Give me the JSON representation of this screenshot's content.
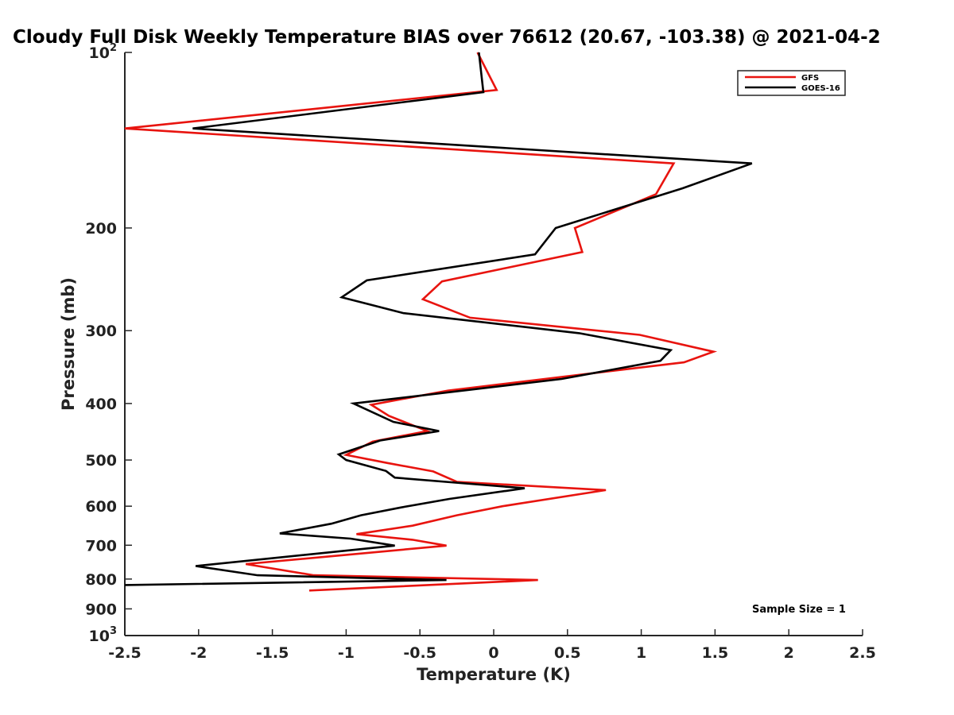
{
  "chart_data": {
    "type": "line",
    "title": "Cloudy Full Disk Weekly Temperature BIAS over 76612 (20.67, -103.38) @ 2021-04-2",
    "xlabel": "Temperature (K)",
    "ylabel": "Pressure (mb)",
    "xlim": [
      -2.5,
      2.5
    ],
    "ylim": [
      100,
      1000
    ],
    "y_scale": "log",
    "y_reversed": true,
    "grid": false,
    "x_ticks": [
      -2.5,
      -2,
      -1.5,
      -1,
      -0.5,
      0,
      0.5,
      1,
      1.5,
      2,
      2.5
    ],
    "x_tick_labels": [
      "-2.5",
      "-2",
      "-1.5",
      "-1",
      "-0.5",
      "0",
      "0.5",
      "1",
      "1.5",
      "2",
      "2.5"
    ],
    "y_ticks": [
      {
        "value": 100,
        "base": "10",
        "exp": "2"
      },
      {
        "value": 200,
        "label": "200"
      },
      {
        "value": 300,
        "label": "300"
      },
      {
        "value": 400,
        "label": "400"
      },
      {
        "value": 500,
        "label": "500"
      },
      {
        "value": 600,
        "label": "600"
      },
      {
        "value": 700,
        "label": "700"
      },
      {
        "value": 800,
        "label": "800"
      },
      {
        "value": 900,
        "label": "900"
      },
      {
        "value": 1000,
        "base": "10",
        "exp": "3"
      }
    ],
    "legend_position": "top-right",
    "series": [
      {
        "name": "GFS",
        "color": "#e8140f",
        "points": [
          {
            "t": -0.11,
            "p": 100
          },
          {
            "t": 0.02,
            "p": 116
          },
          {
            "t": -2.5,
            "p": 135
          },
          {
            "t": 1.22,
            "p": 155
          },
          {
            "t": 1.1,
            "p": 175
          },
          {
            "t": 0.55,
            "p": 200
          },
          {
            "t": 0.6,
            "p": 220
          },
          {
            "t": -0.35,
            "p": 247
          },
          {
            "t": -0.48,
            "p": 265
          },
          {
            "t": -0.16,
            "p": 285
          },
          {
            "t": 0.99,
            "p": 305
          },
          {
            "t": 1.49,
            "p": 326
          },
          {
            "t": 1.29,
            "p": 340
          },
          {
            "t": -0.31,
            "p": 380
          },
          {
            "t": -0.83,
            "p": 402
          },
          {
            "t": -0.71,
            "p": 420
          },
          {
            "t": -0.45,
            "p": 446
          },
          {
            "t": -0.82,
            "p": 465
          },
          {
            "t": -1.0,
            "p": 490
          },
          {
            "t": -0.72,
            "p": 506
          },
          {
            "t": -0.41,
            "p": 523
          },
          {
            "t": -0.25,
            "p": 545
          },
          {
            "t": 0.76,
            "p": 563
          },
          {
            "t": 0.06,
            "p": 600
          },
          {
            "t": -0.25,
            "p": 622
          },
          {
            "t": -0.55,
            "p": 648
          },
          {
            "t": -0.93,
            "p": 670
          },
          {
            "t": -0.55,
            "p": 685
          },
          {
            "t": -0.32,
            "p": 701
          },
          {
            "t": -1.68,
            "p": 754
          },
          {
            "t": -1.22,
            "p": 788
          },
          {
            "t": 0.3,
            "p": 803
          },
          {
            "t": -1.25,
            "p": 837
          }
        ]
      },
      {
        "name": "GOES-16",
        "color": "#000000",
        "points": [
          {
            "t": -0.1,
            "p": 100
          },
          {
            "t": -0.07,
            "p": 117
          },
          {
            "t": -2.04,
            "p": 135
          },
          {
            "t": 1.75,
            "p": 155
          },
          {
            "t": 1.28,
            "p": 171
          },
          {
            "t": 0.42,
            "p": 200
          },
          {
            "t": 0.28,
            "p": 222
          },
          {
            "t": -0.86,
            "p": 246
          },
          {
            "t": -1.03,
            "p": 263
          },
          {
            "t": -0.61,
            "p": 280
          },
          {
            "t": 0.58,
            "p": 303
          },
          {
            "t": 1.2,
            "p": 324
          },
          {
            "t": 1.13,
            "p": 338
          },
          {
            "t": 0.46,
            "p": 363
          },
          {
            "t": -0.95,
            "p": 400
          },
          {
            "t": -0.68,
            "p": 430
          },
          {
            "t": -0.37,
            "p": 446
          },
          {
            "t": -0.77,
            "p": 463
          },
          {
            "t": -1.05,
            "p": 489
          },
          {
            "t": -1.0,
            "p": 500
          },
          {
            "t": -0.73,
            "p": 522
          },
          {
            "t": -0.67,
            "p": 536
          },
          {
            "t": 0.21,
            "p": 559
          },
          {
            "t": -0.3,
            "p": 583
          },
          {
            "t": -0.63,
            "p": 603
          },
          {
            "t": -0.9,
            "p": 622
          },
          {
            "t": -1.1,
            "p": 643
          },
          {
            "t": -1.45,
            "p": 668
          },
          {
            "t": -0.97,
            "p": 682
          },
          {
            "t": -0.67,
            "p": 701
          },
          {
            "t": -2.02,
            "p": 760
          },
          {
            "t": -1.6,
            "p": 788
          },
          {
            "t": -0.32,
            "p": 803
          },
          {
            "t": -2.5,
            "p": 819
          }
        ]
      }
    ],
    "annotation": "Sample Size = 1"
  }
}
